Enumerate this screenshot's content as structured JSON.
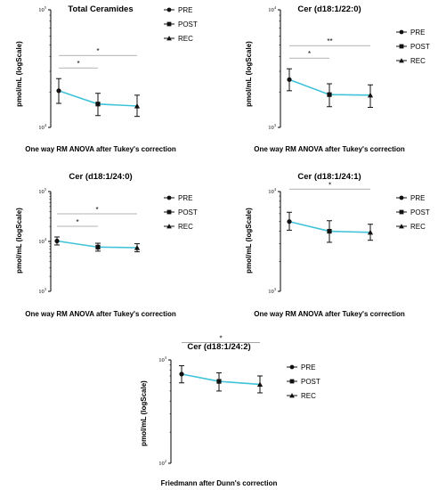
{
  "chart_data": [
    {
      "type": "line",
      "title": "Total Ceramides",
      "ylabel": "pmol/mL (logScale)",
      "caption": "One way RM ANOVA after Tukey's correction",
      "yscale": "log",
      "ylim": [
        10000,
        100000
      ],
      "ytick_base": "10",
      "yticks": [
        {
          "value": 100000,
          "exp": "5"
        },
        {
          "value": 10000,
          "exp": "4"
        }
      ],
      "categories": [
        "PRE",
        "POST",
        "REC"
      ],
      "values": [
        20500,
        15800,
        15200
      ],
      "err_upper": [
        26000,
        19500,
        18800
      ],
      "err_lower": [
        16000,
        12600,
        12400
      ],
      "significance": [
        {
          "from": 0,
          "to": 1,
          "label": "*"
        },
        {
          "from": 0,
          "to": 2,
          "label": "*"
        }
      ],
      "legend": [
        {
          "label": "PRE",
          "marker": "circle"
        },
        {
          "label": "POST",
          "marker": "square"
        },
        {
          "label": "REC",
          "marker": "triangle"
        }
      ],
      "line_color": "#3ec3d9"
    },
    {
      "type": "line",
      "title": "Cer (d18:1/22:0)",
      "ylabel": "pmol/mL (logScale)",
      "caption": "One way RM ANOVA after Tukey's correction",
      "yscale": "log",
      "ylim": [
        1000,
        10000
      ],
      "ytick_base": "10",
      "yticks": [
        {
          "value": 10000,
          "exp": "4"
        },
        {
          "value": 1000,
          "exp": "3"
        }
      ],
      "categories": [
        "PRE",
        "POST",
        "REC"
      ],
      "values": [
        2550,
        1900,
        1880
      ],
      "err_upper": [
        3150,
        2350,
        2300
      ],
      "err_lower": [
        2050,
        1500,
        1480
      ],
      "significance": [
        {
          "from": 0,
          "to": 1,
          "label": "*"
        },
        {
          "from": 0,
          "to": 2,
          "label": "**"
        }
      ],
      "legend": [
        {
          "label": "PRE",
          "marker": "circle"
        },
        {
          "label": "POST",
          "marker": "square"
        },
        {
          "label": "REC",
          "marker": "triangle"
        }
      ],
      "line_color": "#3ec3d9"
    },
    {
      "type": "line",
      "title": "Cer (d18:1/24:0)",
      "ylabel": "pmol/mL (logScale)",
      "caption": "One way RM ANOVA after Tukey's correction",
      "yscale": "log",
      "ylim": [
        1000,
        100000
      ],
      "ytick_base": "10",
      "yticks": [
        {
          "value": 100000,
          "exp": "5"
        },
        {
          "value": 10000,
          "exp": "4"
        },
        {
          "value": 1000,
          "exp": "3"
        }
      ],
      "categories": [
        "PRE",
        "POST",
        "REC"
      ],
      "values": [
        10200,
        7700,
        7500
      ],
      "err_upper": [
        12300,
        9200,
        9000
      ],
      "err_lower": [
        8500,
        6400,
        6200
      ],
      "significance": [
        {
          "from": 0,
          "to": 1,
          "label": "*"
        },
        {
          "from": 0,
          "to": 2,
          "label": "*"
        }
      ],
      "legend": [
        {
          "label": "PRE",
          "marker": "circle"
        },
        {
          "label": "POST",
          "marker": "square"
        },
        {
          "label": "REC",
          "marker": "triangle"
        }
      ],
      "line_color": "#3ec3d9"
    },
    {
      "type": "line",
      "title": "Cer (d18:1/24:1)",
      "ylabel": "pmol/mL (logScale)",
      "caption": "One way RM ANOVA after Tukey's correction",
      "yscale": "log",
      "ylim": [
        1000,
        10000
      ],
      "ytick_base": "10",
      "yticks": [
        {
          "value": 10000,
          "exp": "4"
        },
        {
          "value": 1000,
          "exp": "3"
        }
      ],
      "categories": [
        "PRE",
        "POST",
        "REC"
      ],
      "values": [
        5000,
        4000,
        3900
      ],
      "err_upper": [
        6200,
        5100,
        4700
      ],
      "err_lower": [
        4100,
        3100,
        3250
      ],
      "significance": [
        {
          "from": 0,
          "to": 2,
          "label": "*"
        }
      ],
      "legend": [
        {
          "label": "PRE",
          "marker": "circle"
        },
        {
          "label": "POST",
          "marker": "square"
        },
        {
          "label": "REC",
          "marker": "triangle"
        }
      ],
      "line_color": "#3ec3d9"
    },
    {
      "type": "line",
      "title": "Cer (d18:1/24:2)",
      "ylabel": "pmol/mL (logScale)",
      "caption": "Friedmann after Dunn's correction",
      "yscale": "log",
      "ylim": [
        100,
        1000
      ],
      "ytick_base": "10",
      "yticks": [
        {
          "value": 1000,
          "exp": "3"
        },
        {
          "value": 100,
          "exp": "2"
        }
      ],
      "categories": [
        "PRE",
        "POST",
        "REC"
      ],
      "values": [
        730,
        620,
        580
      ],
      "err_upper": [
        880,
        750,
        700
      ],
      "err_lower": [
        600,
        500,
        480
      ],
      "significance": [
        {
          "from": 0,
          "to": 2,
          "label": "*"
        }
      ],
      "legend": [
        {
          "label": "PRE",
          "marker": "circle"
        },
        {
          "label": "POST",
          "marker": "square"
        },
        {
          "label": "REC",
          "marker": "triangle"
        }
      ],
      "line_color": "#3ec3d9"
    }
  ]
}
